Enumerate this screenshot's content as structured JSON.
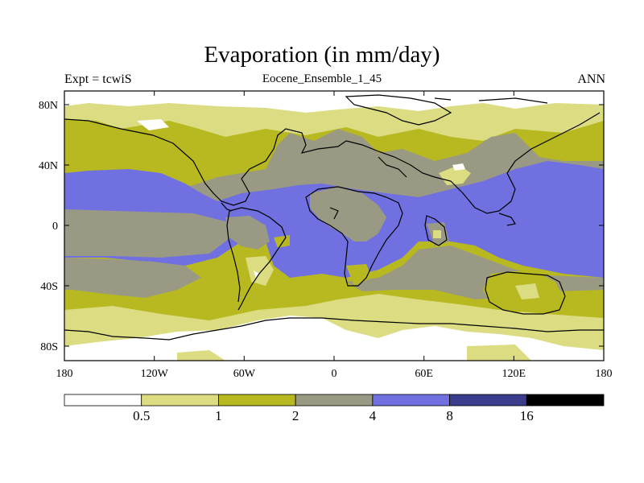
{
  "title": "Evaporation (in mm/day)",
  "subtitle": "Eocene_Ensemble_1_45",
  "left_label": "Expt = tcwiS",
  "right_label": "ANN",
  "lat_ticks": [
    "80N",
    "40N",
    "0",
    "40S",
    "80S"
  ],
  "lon_ticks": [
    "180",
    "120W",
    "60W",
    "0",
    "60E",
    "120E",
    "180"
  ],
  "colorbar": {
    "colors": [
      "#ffffff",
      "#dcdc82",
      "#b8b820",
      "#9a9a84",
      "#7070e0",
      "#3c3c8c",
      "#000000"
    ],
    "labels": [
      "0.5",
      "1",
      "2",
      "4",
      "8",
      "16"
    ]
  },
  "contour_levels_mm_per_day": [
    0.5,
    1,
    2,
    4,
    8,
    16
  ]
}
